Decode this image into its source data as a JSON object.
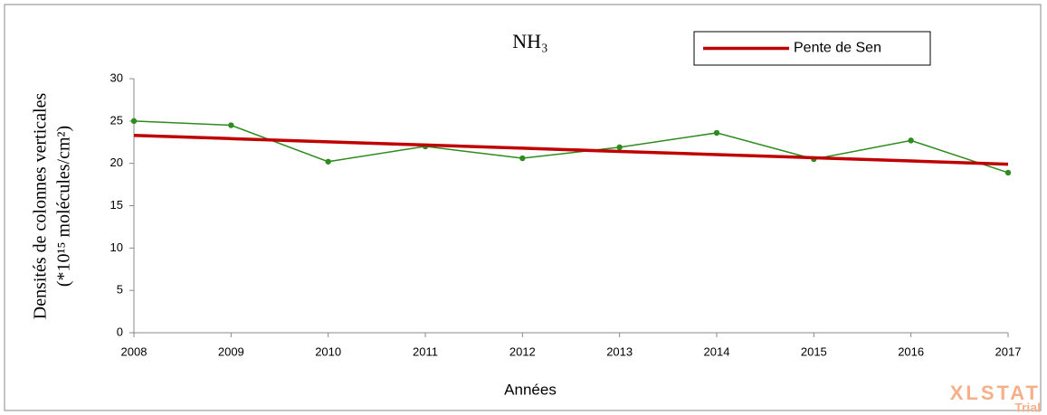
{
  "chart_data": {
    "type": "line",
    "title": "NH₃",
    "x_label": "Années",
    "y_label": [
      "Densités de colonnes verticales",
      "(*10¹⁵ molécules/cm²)"
    ],
    "watermark": [
      "XLSTAT",
      "Trial"
    ],
    "x": [
      2008,
      2009,
      2010,
      2011,
      2012,
      2013,
      2014,
      2015,
      2016,
      2017
    ],
    "series": [
      {
        "color": "#2e8b1e",
        "markers": true,
        "values": [
          25.0,
          24.5,
          20.2,
          22.0,
          20.6,
          21.9,
          23.6,
          20.5,
          22.7,
          18.9
        ]
      },
      {
        "name": "Pente de Sen",
        "color": "#c00000",
        "markers": false,
        "values": [
          23.3,
          22.92,
          22.54,
          22.17,
          21.79,
          21.41,
          21.03,
          20.66,
          20.28,
          19.9
        ]
      }
    ],
    "xlim": [
      2008,
      2017
    ],
    "xticks": [
      2008,
      2009,
      2010,
      2011,
      2012,
      2013,
      2014,
      2015,
      2016,
      2017
    ],
    "ylim": [
      0,
      30
    ],
    "yticks": [
      0,
      5,
      10,
      15,
      20,
      25,
      30
    ],
    "grid": false,
    "legend": "top-right"
  }
}
